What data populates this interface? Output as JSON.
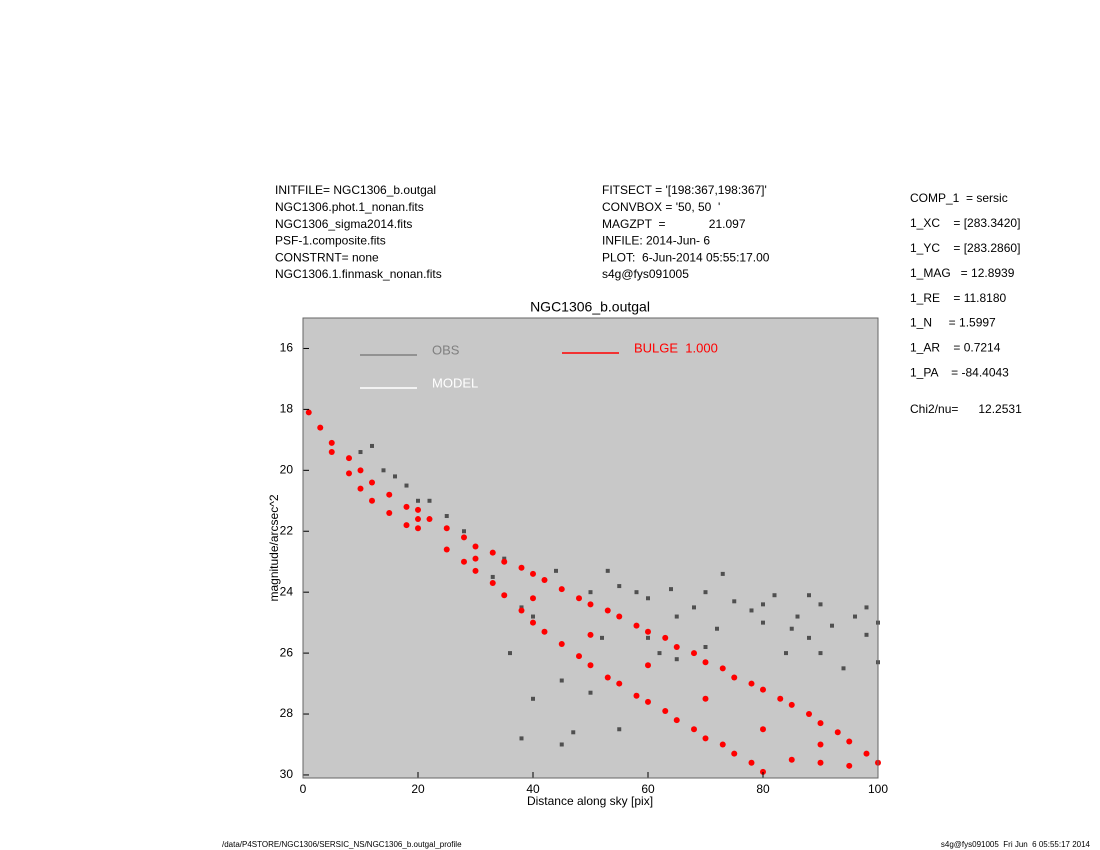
{
  "header": {
    "left": [
      "INITFILE= NGC1306_b.outgal",
      "NGC1306.phot.1_nonan.fits",
      "NGC1306_sigma2014.fits",
      "PSF-1.composite.fits",
      "CONSTRNT= none",
      "NGC1306.1.finmask_nonan.fits"
    ],
    "middle": [
      "FITSECT = '[198:367,198:367]'",
      "CONVBOX = '50, 50  '",
      "MAGZPT  =             21.097",
      "INFILE: 2014-Jun- 6",
      "PLOT:  6-Jun-2014 05:55:17.00",
      "s4g@fys091005"
    ],
    "right": [
      "COMP_1  = sersic",
      "1_XC    = [283.3420]",
      "1_YC    = [283.2860]",
      "1_MAG   = 12.8939",
      "1_RE    = 11.8180",
      "1_N     = 1.5997",
      "1_AR    = 0.7214",
      "1_PA    = -84.4043"
    ],
    "chi2": "Chi2/nu=      12.2531"
  },
  "footer": {
    "left": "/data/P4STORE/NGC1306/SERSIC_NS/NGC1306_b.outgal_profile",
    "right": "s4g@fys091005  Fri Jun  6 05:55:17 2014"
  },
  "chart_data": {
    "type": "scatter",
    "title": "NGC1306_b.outgal",
    "x_label": "Distance along sky [pix]",
    "y_label": "magnitude/arcsec^2",
    "xlim": [
      0,
      100
    ],
    "xticks": [
      0,
      20,
      40,
      60,
      80,
      100
    ],
    "ylim": [
      30.1,
      15
    ],
    "yticks": [
      16,
      18,
      20,
      22,
      24,
      26,
      28,
      30
    ],
    "background": "#c8c8c8",
    "series": [
      {
        "name": "OBS",
        "color": "#505050",
        "legend_color": "#808080",
        "x": [
          10,
          12,
          14,
          16,
          18,
          20,
          22,
          25,
          28,
          30,
          35,
          38,
          40,
          42,
          44,
          45,
          47,
          50,
          52,
          55,
          58,
          60,
          62,
          64,
          65,
          68,
          70,
          72,
          75,
          78,
          80,
          82,
          84,
          86,
          88,
          90,
          92,
          94,
          96,
          98,
          100,
          36,
          38,
          40,
          45,
          50,
          55,
          60,
          70,
          80,
          85,
          90,
          75,
          65,
          100,
          98,
          33,
          48,
          53,
          73,
          88
        ],
        "y": [
          19.4,
          19.2,
          20.0,
          20.2,
          20.5,
          21.0,
          21.0,
          21.5,
          22.0,
          22.5,
          22.9,
          24.5,
          24.8,
          23.6,
          23.3,
          26.9,
          28.6,
          24.0,
          25.5,
          23.8,
          24.0,
          24.2,
          26.0,
          23.9,
          24.8,
          24.5,
          24.0,
          25.2,
          24.3,
          24.6,
          25.0,
          24.1,
          26.0,
          24.8,
          25.5,
          24.4,
          25.1,
          26.5,
          24.8,
          25.4,
          25.0,
          26.0,
          28.8,
          27.5,
          29.0,
          27.3,
          28.5,
          25.5,
          25.8,
          24.4,
          25.2,
          26.0,
          26.8,
          26.2,
          26.3,
          24.5,
          23.5,
          24.2,
          23.3,
          23.4,
          24.1
        ]
      },
      {
        "name": "MODEL",
        "color": "#ffffff",
        "x": [],
        "y": []
      },
      {
        "name": "BULGE  1.000",
        "color": "#ff0000",
        "x": [
          1,
          3,
          5,
          5,
          8,
          8,
          10,
          10,
          12,
          12,
          15,
          15,
          18,
          18,
          20,
          20,
          22,
          25,
          25,
          28,
          28,
          30,
          30,
          33,
          33,
          35,
          35,
          38,
          38,
          40,
          40,
          42,
          42,
          45,
          45,
          48,
          48,
          50,
          50,
          53,
          53,
          55,
          55,
          58,
          58,
          60,
          60,
          63,
          63,
          65,
          65,
          68,
          68,
          70,
          70,
          73,
          73,
          75,
          75,
          78,
          78,
          80,
          80,
          83,
          85,
          85,
          88,
          90,
          90,
          93,
          95,
          95,
          98,
          100,
          40,
          60,
          80,
          50,
          70,
          30,
          20,
          90
        ],
        "y": [
          18.1,
          18.6,
          19.1,
          19.4,
          19.6,
          20.1,
          20.0,
          20.6,
          20.4,
          21.0,
          20.8,
          21.4,
          21.2,
          21.8,
          21.3,
          21.9,
          21.6,
          21.9,
          22.6,
          22.2,
          23.0,
          22.5,
          23.3,
          22.7,
          23.7,
          23.0,
          24.1,
          23.2,
          24.6,
          23.4,
          25.0,
          23.6,
          25.3,
          23.9,
          25.7,
          24.2,
          26.1,
          24.4,
          26.4,
          24.6,
          26.8,
          24.8,
          27.0,
          25.1,
          27.4,
          25.3,
          27.6,
          25.5,
          27.9,
          25.8,
          28.2,
          26.0,
          28.5,
          26.3,
          28.8,
          26.5,
          29.0,
          26.8,
          29.3,
          27.0,
          29.6,
          27.2,
          29.9,
          27.5,
          27.7,
          29.5,
          28.0,
          28.3,
          29.6,
          28.6,
          28.9,
          29.7,
          29.3,
          29.6,
          24.2,
          26.4,
          28.5,
          25.4,
          27.5,
          22.9,
          21.6,
          29.0
        ]
      }
    ]
  }
}
